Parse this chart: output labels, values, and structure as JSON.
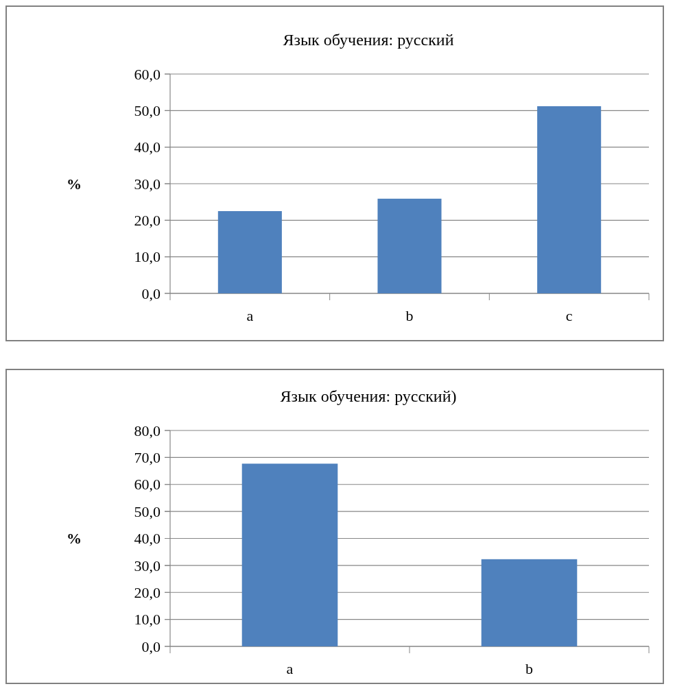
{
  "chart_data": [
    {
      "type": "bar",
      "title": "Язык обучения: русский",
      "ylabel": "%",
      "categories": [
        "a",
        "b",
        "c"
      ],
      "values": [
        22.5,
        25.9,
        51.2
      ],
      "color": "#4f81bd",
      "ylim": [
        0,
        60
      ],
      "yticks": [
        {
          "value": 0,
          "label": "0,0"
        },
        {
          "value": 10,
          "label": "10,0"
        },
        {
          "value": 20,
          "label": "20,0"
        },
        {
          "value": 30,
          "label": "30,0"
        },
        {
          "value": 40,
          "label": "40,0"
        },
        {
          "value": 50,
          "label": "50,0"
        },
        {
          "value": 60,
          "label": "60,0"
        }
      ],
      "grid": "y"
    },
    {
      "type": "bar",
      "title": "Язык обучения: русский)",
      "ylabel": "%",
      "categories": [
        "a",
        "b"
      ],
      "values": [
        67.7,
        32.3
      ],
      "color": "#4f81bd",
      "ylim": [
        0,
        80
      ],
      "yticks": [
        {
          "value": 0,
          "label": "0,0"
        },
        {
          "value": 10,
          "label": "10,0"
        },
        {
          "value": 20,
          "label": "20,0"
        },
        {
          "value": 30,
          "label": "30,0"
        },
        {
          "value": 40,
          "label": "40,0"
        },
        {
          "value": 50,
          "label": "50,0"
        },
        {
          "value": 60,
          "label": "60,0"
        },
        {
          "value": 70,
          "label": "70,0"
        },
        {
          "value": 80,
          "label": "80,0"
        }
      ],
      "grid": "y"
    }
  ]
}
